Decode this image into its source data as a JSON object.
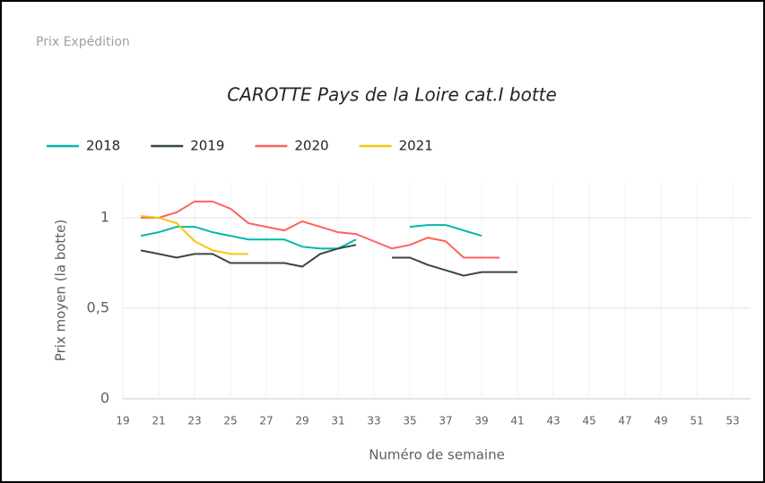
{
  "header": {
    "title": "Prix Expédition"
  },
  "chart_data": {
    "type": "line",
    "title": "CAROTTE Pays de la Loire cat.I botte",
    "x_label": "Numéro de semaine",
    "y_label": "Prix moyen  (la botte)",
    "x": [
      20,
      21,
      22,
      23,
      24,
      25,
      26,
      27,
      28,
      29,
      30,
      31,
      32,
      33,
      34,
      35,
      36,
      37,
      38,
      39,
      40,
      41
    ],
    "series": [
      {
        "name": "2018",
        "color": "#01b8aa",
        "values": [
          0.9,
          0.92,
          0.95,
          0.95,
          0.92,
          0.9,
          0.88,
          0.88,
          0.88,
          0.84,
          0.83,
          0.83,
          0.88,
          null,
          null,
          0.95,
          0.96,
          0.96,
          0.93,
          0.9,
          null,
          null
        ]
      },
      {
        "name": "2019",
        "color": "#374649",
        "values": [
          0.82,
          0.8,
          0.78,
          0.8,
          0.8,
          0.75,
          0.75,
          0.75,
          0.75,
          0.73,
          0.8,
          0.83,
          0.85,
          null,
          0.78,
          0.78,
          0.74,
          0.71,
          0.68,
          0.7,
          0.7,
          0.7
        ]
      },
      {
        "name": "2020",
        "color": "#fd625e",
        "values": [
          1.0,
          1.0,
          1.03,
          1.09,
          1.09,
          1.05,
          0.97,
          0.95,
          0.93,
          0.98,
          0.95,
          0.92,
          0.91,
          0.87,
          0.83,
          0.85,
          0.89,
          0.87,
          0.78,
          0.78,
          0.78,
          null
        ]
      },
      {
        "name": "2021",
        "color": "#f2c80f",
        "values": [
          1.01,
          1.0,
          0.97,
          0.87,
          0.82,
          0.8,
          0.8,
          null,
          null,
          null,
          null,
          null,
          null,
          null,
          null,
          null,
          null,
          null,
          null,
          null,
          null,
          null
        ]
      }
    ],
    "xlim": [
      19,
      54
    ],
    "xticks": [
      19,
      21,
      23,
      25,
      27,
      29,
      31,
      33,
      35,
      37,
      39,
      41,
      43,
      45,
      47,
      49,
      51,
      53
    ],
    "ylim": [
      0,
      1.2
    ],
    "yticks": [
      0,
      {
        "value": 0.5,
        "label": "0,5"
      },
      1
    ],
    "grid": true,
    "legend": "top-left"
  }
}
